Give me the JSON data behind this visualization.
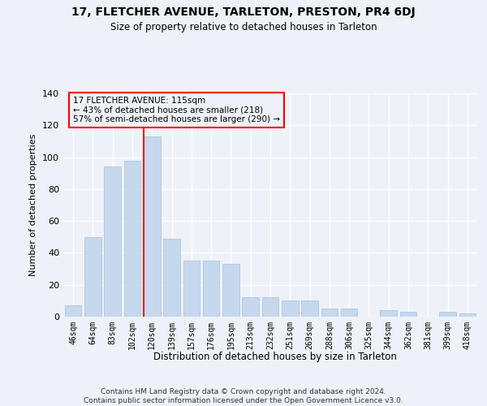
{
  "title1": "17, FLETCHER AVENUE, TARLETON, PRESTON, PR4 6DJ",
  "title2": "Size of property relative to detached houses in Tarleton",
  "xlabel": "Distribution of detached houses by size in Tarleton",
  "ylabel": "Number of detached properties",
  "categories": [
    "46sqm",
    "64sqm",
    "83sqm",
    "102sqm",
    "120sqm",
    "139sqm",
    "157sqm",
    "176sqm",
    "195sqm",
    "213sqm",
    "232sqm",
    "251sqm",
    "269sqm",
    "288sqm",
    "306sqm",
    "325sqm",
    "344sqm",
    "362sqm",
    "381sqm",
    "399sqm",
    "418sqm"
  ],
  "values": [
    7,
    50,
    94,
    98,
    113,
    49,
    35,
    35,
    33,
    12,
    12,
    10,
    10,
    5,
    5,
    0,
    4,
    3,
    0,
    3,
    2
  ],
  "bar_color": "#c5d8ed",
  "bar_edge_color": "#a8c0d8",
  "property_line_idx": 4,
  "annotation_line1": "17 FLETCHER AVENUE: 115sqm",
  "annotation_line2": "← 43% of detached houses are smaller (218)",
  "annotation_line3": "57% of semi-detached houses are larger (290) →",
  "ylim": [
    0,
    140
  ],
  "yticks": [
    0,
    20,
    40,
    60,
    80,
    100,
    120,
    140
  ],
  "footer1": "Contains HM Land Registry data © Crown copyright and database right 2024.",
  "footer2": "Contains public sector information licensed under the Open Government Licence v3.0.",
  "background_color": "#eef2f8",
  "grid_color": "#ffffff"
}
